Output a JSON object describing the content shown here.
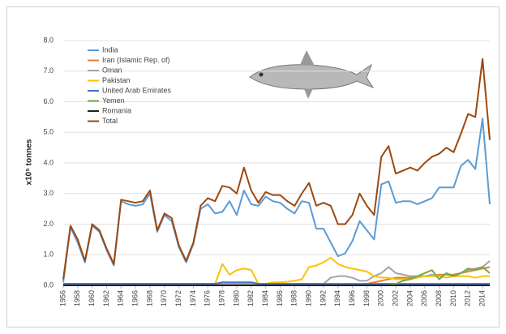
{
  "chart_data": {
    "type": "line",
    "y_label": "x10⁵ tonnes",
    "x": [
      1956,
      1957,
      1958,
      1959,
      1960,
      1961,
      1962,
      1963,
      1964,
      1965,
      1966,
      1967,
      1968,
      1969,
      1970,
      1971,
      1972,
      1973,
      1974,
      1975,
      1976,
      1977,
      1978,
      1979,
      1980,
      1981,
      1982,
      1983,
      1984,
      1985,
      1986,
      1987,
      1988,
      1989,
      1990,
      1991,
      1992,
      1993,
      1994,
      1995,
      1996,
      1997,
      1998,
      1999,
      2000,
      2001,
      2002,
      2003,
      2004,
      2005,
      2006,
      2007,
      2008,
      2009,
      2010,
      2011,
      2012,
      2013,
      2014,
      2015
    ],
    "xlim": [
      1956,
      2015
    ],
    "xticks": [
      1956,
      1958,
      1960,
      1962,
      1964,
      1966,
      1968,
      1970,
      1972,
      1974,
      1976,
      1978,
      1980,
      1982,
      1984,
      1986,
      1988,
      1990,
      1992,
      1994,
      1996,
      1998,
      2000,
      2002,
      2004,
      2006,
      2008,
      2010,
      2012,
      2014
    ],
    "ylim": [
      0,
      8
    ],
    "yticks": [
      {
        "value": 0,
        "label": "0.0"
      },
      {
        "value": 1,
        "label": "1.0"
      },
      {
        "value": 2,
        "label": "2.0"
      },
      {
        "value": 3,
        "label": "3.0"
      },
      {
        "value": 4,
        "label": "4.0"
      },
      {
        "value": 5,
        "label": "5.0"
      },
      {
        "value": 6,
        "label": "6.0"
      },
      {
        "value": 7,
        "label": "7.0"
      },
      {
        "value": 8,
        "label": "8.0"
      }
    ],
    "grid": true,
    "legend": "top-left",
    "series": [
      {
        "name": "India",
        "color": "#5b9bd5",
        "values": [
          0.1,
          1.9,
          1.4,
          0.75,
          1.95,
          1.75,
          1.15,
          0.65,
          2.75,
          2.65,
          2.6,
          2.65,
          3.0,
          1.75,
          2.3,
          2.1,
          1.25,
          0.75,
          1.35,
          2.5,
          2.65,
          2.35,
          2.4,
          2.75,
          2.3,
          3.1,
          2.65,
          2.6,
          2.9,
          2.75,
          2.7,
          2.5,
          2.35,
          2.75,
          2.7,
          1.85,
          1.85,
          1.4,
          0.95,
          1.05,
          1.45,
          2.1,
          1.8,
          1.5,
          3.3,
          3.4,
          2.7,
          2.75,
          2.75,
          2.65,
          2.75,
          2.85,
          3.2,
          3.2,
          3.2,
          3.9,
          4.1,
          3.8,
          5.45,
          2.65
        ]
      },
      {
        "name": "Iran (Islamic Rep. of)",
        "color": "#ed7d31",
        "values": [
          0,
          0,
          0,
          0,
          0,
          0,
          0,
          0,
          0,
          0,
          0,
          0,
          0,
          0,
          0,
          0,
          0,
          0,
          0,
          0,
          0,
          0,
          0,
          0,
          0,
          0,
          0,
          0,
          0,
          0,
          0,
          0,
          0,
          0,
          0,
          0,
          0,
          0,
          0,
          0,
          0,
          0,
          0.05,
          0.1,
          0.15,
          0.2,
          0.25,
          0.25,
          0.25,
          0.3,
          0.3,
          0.3,
          0.35,
          0.35,
          0.35,
          0.4,
          0.45,
          0.5,
          0.55,
          0.6
        ]
      },
      {
        "name": "Oman",
        "color": "#a5a5a5",
        "values": [
          0.05,
          0.05,
          0.05,
          0.05,
          0.05,
          0.05,
          0.05,
          0.05,
          0.05,
          0.05,
          0.05,
          0.05,
          0.05,
          0.05,
          0.05,
          0.05,
          0.05,
          0.05,
          0.05,
          0.05,
          0.05,
          0.05,
          0.05,
          0.05,
          0.05,
          0.05,
          0.05,
          0.05,
          0.05,
          0.05,
          0.05,
          0.05,
          0.05,
          0.05,
          0.05,
          0.05,
          0.05,
          0.25,
          0.3,
          0.3,
          0.25,
          0.15,
          0.15,
          0.3,
          0.4,
          0.6,
          0.4,
          0.35,
          0.3,
          0.3,
          0.3,
          0.35,
          0.3,
          0.35,
          0.3,
          0.4,
          0.5,
          0.55,
          0.6,
          0.8
        ]
      },
      {
        "name": "Pakistan",
        "color": "#ffc000",
        "values": [
          0.02,
          0.02,
          0.02,
          0.02,
          0.02,
          0.02,
          0.02,
          0.02,
          0.02,
          0.02,
          0.02,
          0.02,
          0.02,
          0.02,
          0.02,
          0.02,
          0.02,
          0.02,
          0.02,
          0.02,
          0.02,
          0.05,
          0.7,
          0.35,
          0.5,
          0.55,
          0.5,
          0.05,
          0.05,
          0.1,
          0.1,
          0.12,
          0.15,
          0.2,
          0.6,
          0.65,
          0.75,
          0.9,
          0.7,
          0.6,
          0.55,
          0.5,
          0.45,
          0.3,
          0.25,
          0.25,
          0.2,
          0.2,
          0.2,
          0.25,
          0.3,
          0.3,
          0.3,
          0.25,
          0.3,
          0.3,
          0.3,
          0.25,
          0.3,
          0.3
        ]
      },
      {
        "name": "United Arab Emirates",
        "color": "#4472c4",
        "values": [
          0.05,
          0.05,
          0.05,
          0.05,
          0.05,
          0.05,
          0.05,
          0.05,
          0.05,
          0.05,
          0.05,
          0.05,
          0.05,
          0.05,
          0.05,
          0.05,
          0.05,
          0.05,
          0.05,
          0.05,
          0.05,
          0.05,
          0.1,
          0.1,
          0.1,
          0.1,
          0.1,
          0.05,
          0.05,
          0.05,
          0.05,
          0.05,
          0.05,
          0.05,
          0.05,
          0.05,
          0.05,
          0.05,
          0.05,
          0.05,
          0.05,
          0.05,
          0.05,
          0.05,
          0.05,
          0.05,
          0.05,
          0.05,
          0.05,
          0.05,
          0.05,
          0.05,
          0.05,
          0.05,
          0.05,
          0.05,
          0.05,
          0.05,
          0.05,
          0.05
        ]
      },
      {
        "name": "Yemen",
        "color": "#70ad47",
        "values": [
          0,
          0,
          0,
          0,
          0,
          0,
          0,
          0,
          0,
          0,
          0,
          0,
          0,
          0,
          0,
          0,
          0,
          0,
          0,
          0,
          0,
          0,
          0,
          0,
          0,
          0,
          0,
          0,
          0,
          0,
          0,
          0,
          0,
          0,
          0,
          0,
          0,
          0,
          0,
          0,
          0,
          0,
          0,
          0,
          0,
          0,
          0.05,
          0.15,
          0.2,
          0.3,
          0.4,
          0.5,
          0.2,
          0.4,
          0.3,
          0.4,
          0.55,
          0.5,
          0.6,
          0.4
        ]
      },
      {
        "name": "Romania",
        "color": "#222222",
        "values": [
          0,
          0,
          0,
          0,
          0,
          0,
          0,
          0,
          0,
          0,
          0,
          0,
          0,
          0,
          0,
          0,
          0,
          0,
          0,
          0,
          0,
          0,
          0,
          0,
          0,
          0,
          0,
          0,
          0,
          0,
          0,
          0,
          0,
          0,
          0,
          0,
          0,
          0,
          0,
          0,
          0,
          0,
          0,
          0,
          0,
          0,
          0,
          0,
          0,
          0,
          0,
          0,
          0,
          0,
          0,
          0,
          0,
          0,
          0,
          0
        ]
      },
      {
        "name": "Total",
        "color": "#9e480e",
        "values": [
          0.2,
          1.95,
          1.5,
          0.8,
          2.0,
          1.8,
          1.2,
          0.7,
          2.8,
          2.75,
          2.7,
          2.75,
          3.1,
          1.8,
          2.35,
          2.2,
          1.3,
          0.8,
          1.4,
          2.6,
          2.85,
          2.75,
          3.25,
          3.2,
          3.0,
          3.85,
          3.1,
          2.7,
          3.05,
          2.95,
          2.95,
          2.75,
          2.6,
          3.0,
          3.35,
          2.6,
          2.7,
          2.6,
          2.0,
          2.0,
          2.3,
          3.0,
          2.6,
          2.3,
          4.2,
          4.55,
          3.65,
          3.75,
          3.85,
          3.75,
          4.0,
          4.2,
          4.3,
          4.5,
          4.35,
          4.95,
          5.6,
          5.5,
          7.4,
          4.75
        ]
      }
    ]
  }
}
